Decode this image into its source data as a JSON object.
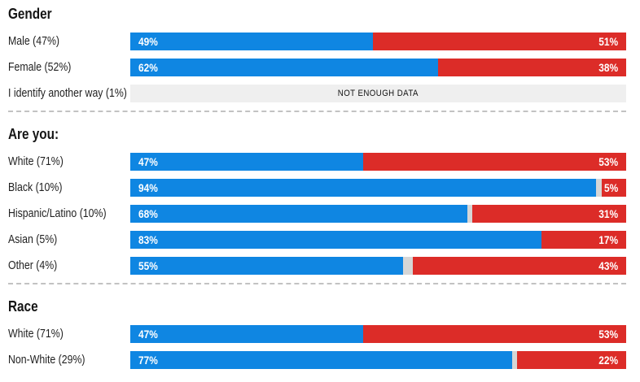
{
  "colors": {
    "blue": "#0f86e2",
    "red": "#dc2c28",
    "gap": "#d6d6d6",
    "no_data_bg": "#efefef",
    "divider": "#c2c2c2",
    "bar_text": "#ffffff",
    "label_text": "#222222"
  },
  "chart_data": {
    "type": "bar",
    "subtype": "horizontal-stacked-diverging",
    "title": "",
    "xlabel": "",
    "ylabel": "",
    "xlim": [
      0,
      100
    ],
    "grid": "off",
    "legend": "none",
    "value_labels": "inside-bar-ends",
    "series": [
      {
        "name": "blue-share",
        "color": "#0f86e2"
      },
      {
        "name": "red-share",
        "color": "#dc2c28"
      }
    ],
    "sections": [
      {
        "title": "Gender",
        "rows": [
          {
            "label": "Male (47%)",
            "blue": 49,
            "red": 51,
            "blue_label": "49%",
            "red_label": "51%"
          },
          {
            "label": "Female (52%)",
            "blue": 62,
            "red": 38,
            "blue_label": "62%",
            "red_label": "38%"
          },
          {
            "label": "I identify another way (1%)",
            "no_data": true,
            "no_data_label": "NOT ENOUGH DATA"
          }
        ]
      },
      {
        "title": "Are you:",
        "rows": [
          {
            "label": "White (71%)",
            "blue": 47,
            "red": 53,
            "blue_label": "47%",
            "red_label": "53%"
          },
          {
            "label": "Black (10%)",
            "blue": 94,
            "red": 5,
            "blue_label": "94%",
            "red_label": "5%"
          },
          {
            "label": "Hispanic/Latino (10%)",
            "blue": 68,
            "red": 31,
            "blue_label": "68%",
            "red_label": "31%"
          },
          {
            "label": "Asian (5%)",
            "blue": 83,
            "red": 17,
            "blue_label": "83%",
            "red_label": "17%"
          },
          {
            "label": "Other (4%)",
            "blue": 55,
            "red": 43,
            "blue_label": "55%",
            "red_label": "43%"
          }
        ]
      },
      {
        "title": "Race",
        "rows": [
          {
            "label": "White (71%)",
            "blue": 47,
            "red": 53,
            "blue_label": "47%",
            "red_label": "53%"
          },
          {
            "label": "Non-White (29%)",
            "blue": 77,
            "red": 22,
            "blue_label": "77%",
            "red_label": "22%"
          }
        ]
      }
    ]
  }
}
